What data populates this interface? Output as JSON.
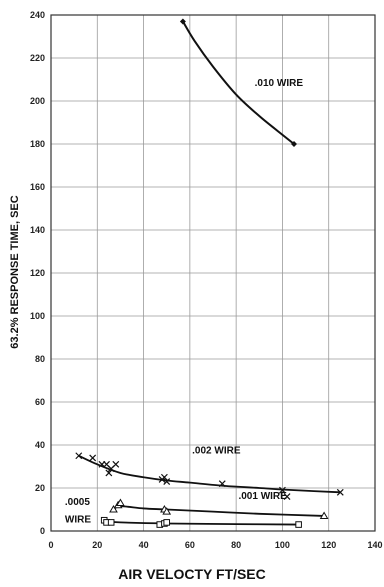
{
  "chart_data": {
    "type": "scatter",
    "title": "",
    "xlabel": "AIR VELOCTY FT/SEC",
    "ylabel": "63.2% RESPONSE TIME, SEC",
    "xlim": [
      0,
      140
    ],
    "ylim": [
      0,
      240
    ],
    "x_ticks": [
      "0",
      "20",
      "40",
      "60",
      "80",
      "100",
      "120",
      "140"
    ],
    "y_ticks": [
      "0",
      "20",
      "40",
      "60",
      "80",
      "100",
      "120",
      "140",
      "160",
      "180",
      "200",
      "220",
      "240"
    ],
    "grid": true,
    "legend": "none",
    "series": [
      {
        "label": ".010 WIRE",
        "marker": "diamond",
        "points": [
          [
            57,
            237
          ],
          [
            105,
            180
          ]
        ],
        "curve": [
          [
            57,
            237
          ],
          [
            62,
            228
          ],
          [
            70,
            216
          ],
          [
            80,
            203
          ],
          [
            90,
            193
          ],
          [
            98,
            186
          ],
          [
            105,
            180
          ]
        ]
      },
      {
        "label": ".002 WIRE",
        "marker": "x",
        "points": [
          [
            12,
            35
          ],
          [
            18,
            34
          ],
          [
            22,
            31
          ],
          [
            24,
            31
          ],
          [
            25,
            27
          ],
          [
            26,
            29
          ],
          [
            28,
            31
          ],
          [
            48,
            24
          ],
          [
            49,
            25
          ],
          [
            50,
            23
          ],
          [
            74,
            22
          ],
          [
            100,
            19
          ],
          [
            102,
            16
          ],
          [
            125,
            18
          ]
        ],
        "curve": [
          [
            12,
            35
          ],
          [
            20,
            31
          ],
          [
            30,
            27
          ],
          [
            40,
            25
          ],
          [
            50,
            23.5
          ],
          [
            60,
            22.5
          ],
          [
            75,
            21
          ],
          [
            90,
            20
          ],
          [
            105,
            19
          ],
          [
            125,
            18
          ]
        ]
      },
      {
        "label": ".001 WIRE",
        "marker": "triangle",
        "points": [
          [
            27,
            10
          ],
          [
            29,
            12
          ],
          [
            30,
            13
          ],
          [
            49,
            10
          ],
          [
            50,
            9
          ],
          [
            118,
            7
          ]
        ],
        "curve": [
          [
            27,
            10
          ],
          [
            30,
            11.5
          ],
          [
            40,
            10.5
          ],
          [
            50,
            10
          ],
          [
            70,
            9
          ],
          [
            90,
            8
          ],
          [
            118,
            7
          ]
        ]
      },
      {
        "label": ".0005 WIRE",
        "marker": "square",
        "points": [
          [
            23,
            5
          ],
          [
            24,
            4
          ],
          [
            26,
            4
          ],
          [
            47,
            3
          ],
          [
            49,
            3.5
          ],
          [
            50,
            4
          ],
          [
            107,
            3
          ]
        ],
        "curve": [
          [
            23,
            4.5
          ],
          [
            30,
            4
          ],
          [
            50,
            3.5
          ],
          [
            80,
            3.2
          ],
          [
            107,
            3
          ]
        ]
      }
    ],
    "annotations": [
      {
        "text": ".010 WIRE",
        "x": 88,
        "y": 207
      },
      {
        "text": ".002 WIRE",
        "x": 61,
        "y": 36
      },
      {
        "text": ".001 WIRE",
        "x": 81,
        "y": 15
      },
      {
        "text": ".0005",
        "x": 6,
        "y": 12
      },
      {
        "text": "WIRE",
        "x": 6,
        "y": 4
      }
    ]
  }
}
